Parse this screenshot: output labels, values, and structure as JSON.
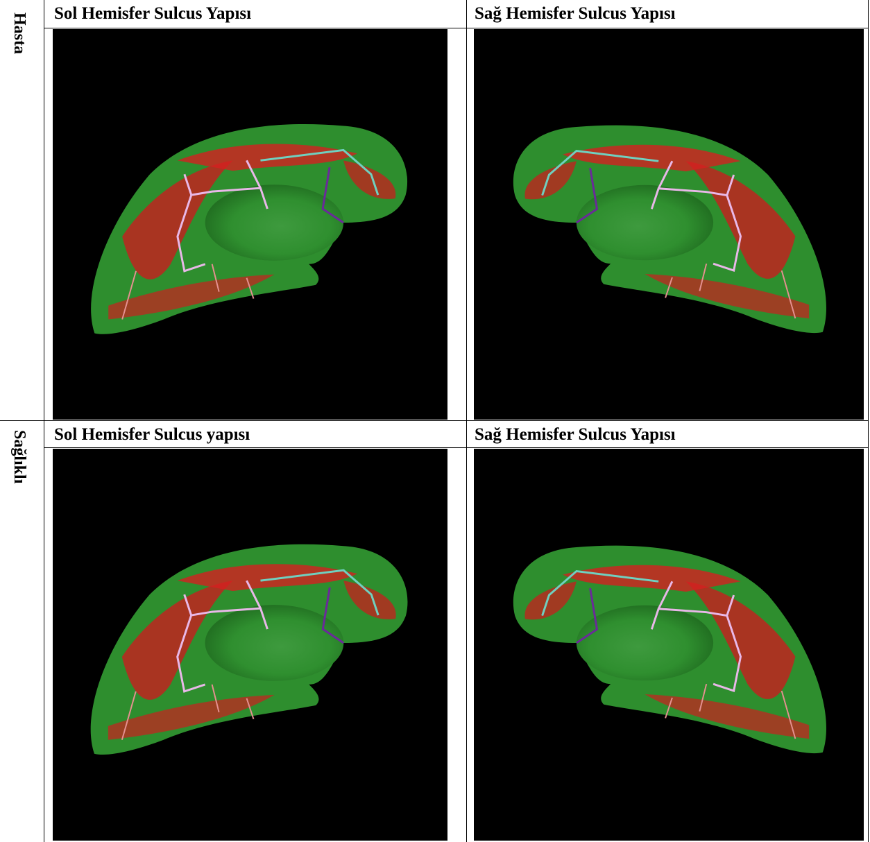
{
  "rows": [
    {
      "label": "Hasta",
      "cells": [
        {
          "title": "Sol Hemisfer Sulcus Yapısı"
        },
        {
          "title": "Sağ Hemisfer Sulcus Yapısı"
        }
      ]
    },
    {
      "label": "Sağlıklı",
      "cells": [
        {
          "title": "Sol Hemisfer Sulcus yapısı"
        },
        {
          "title": "Sağ Hemisfer Sulcus Yapısı"
        }
      ]
    }
  ]
}
